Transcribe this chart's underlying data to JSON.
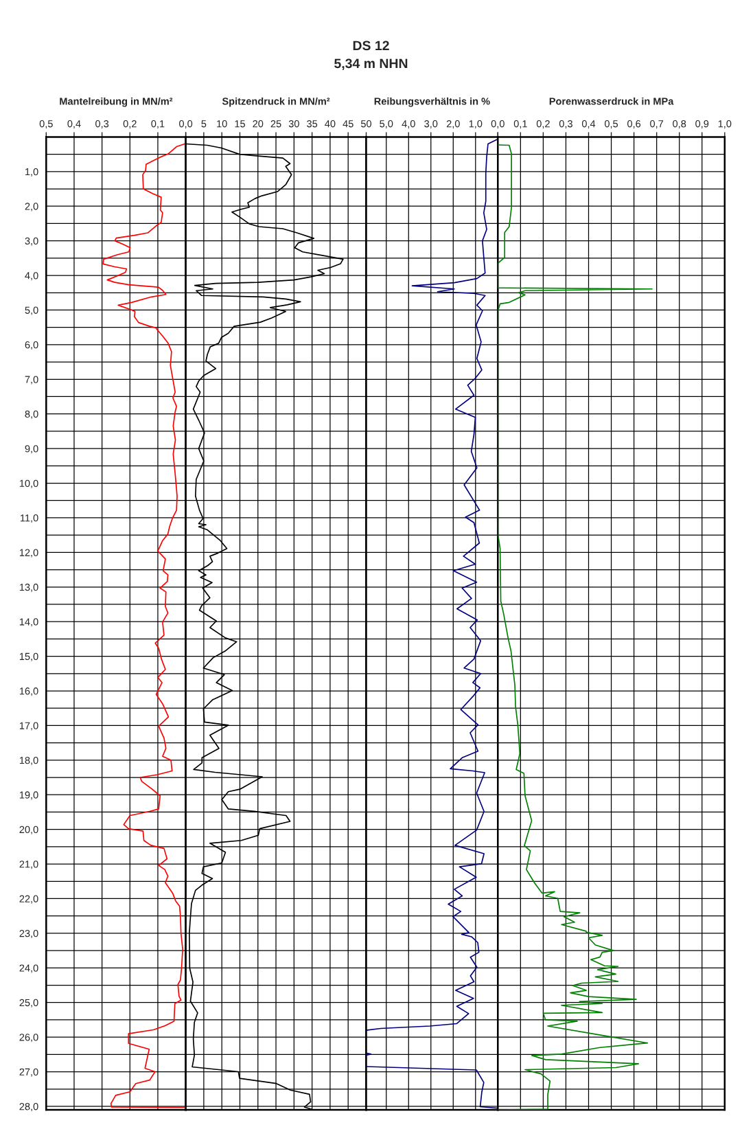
{
  "chart_data": [
    {
      "type": "line",
      "xlabel": "Mantelreibung in MN/m²",
      "grid": true,
      "xlim": [
        0.5,
        0
      ],
      "xticks": [
        {
          "value": 0.5,
          "label": "0,5"
        },
        {
          "value": 0.4,
          "label": "0,4"
        },
        {
          "value": 0.3,
          "label": "0,3"
        },
        {
          "value": 0.2,
          "label": "0,2"
        },
        {
          "value": 0.1,
          "label": "0,1"
        },
        {
          "value": 0,
          "label": "0,0"
        }
      ],
      "ylim": [
        28.1,
        0
      ],
      "yticks": [
        {
          "value": 0.5,
          "label": null
        },
        {
          "value": 1,
          "label": "1,0"
        },
        {
          "value": 1.5,
          "label": null
        },
        {
          "value": 2,
          "label": "2,0"
        },
        {
          "value": 2.5,
          "label": null
        },
        {
          "value": 3,
          "label": "3,0"
        },
        {
          "value": 3.5,
          "label": null
        },
        {
          "value": 4,
          "label": "4,0"
        },
        {
          "value": 4.5,
          "label": null
        },
        {
          "value": 5,
          "label": "5,0"
        },
        {
          "value": 5.5,
          "label": null
        },
        {
          "value": 6,
          "label": "6,0"
        },
        {
          "value": 6.5,
          "label": null
        },
        {
          "value": 7,
          "label": "7,0"
        },
        {
          "value": 7.5,
          "label": null
        },
        {
          "value": 8,
          "label": "8,0"
        },
        {
          "value": 8.5,
          "label": null
        },
        {
          "value": 9,
          "label": "9,0"
        },
        {
          "value": 9.5,
          "label": null
        },
        {
          "value": 10,
          "label": "10,0"
        },
        {
          "value": 10.5,
          "label": null
        },
        {
          "value": 11,
          "label": "11,0"
        },
        {
          "value": 11.5,
          "label": null
        },
        {
          "value": 12,
          "label": "12,0"
        },
        {
          "value": 12.5,
          "label": null
        },
        {
          "value": 13,
          "label": "13,0"
        },
        {
          "value": 13.5,
          "label": null
        },
        {
          "value": 14,
          "label": "14,0"
        },
        {
          "value": 14.5,
          "label": null
        },
        {
          "value": 15,
          "label": "15,0"
        },
        {
          "value": 15.5,
          "label": null
        },
        {
          "value": 16,
          "label": "16,0"
        },
        {
          "value": 16.5,
          "label": null
        },
        {
          "value": 17,
          "label": "17,0"
        },
        {
          "value": 17.5,
          "label": null
        },
        {
          "value": 18,
          "label": "18,0"
        },
        {
          "value": 18.5,
          "label": null
        },
        {
          "value": 19,
          "label": "19,0"
        },
        {
          "value": 19.5,
          "label": null
        },
        {
          "value": 20,
          "label": "20,0"
        },
        {
          "value": 20.5,
          "label": null
        },
        {
          "value": 21,
          "label": "21,0"
        },
        {
          "value": 21.5,
          "label": null
        },
        {
          "value": 22,
          "label": "22,0"
        },
        {
          "value": 22.5,
          "label": null
        },
        {
          "value": 23,
          "label": "23,0"
        },
        {
          "value": 23.5,
          "label": null
        },
        {
          "value": 24,
          "label": "24,0"
        },
        {
          "value": 24.5,
          "label": null
        },
        {
          "value": 25,
          "label": "25,0"
        },
        {
          "value": 25.5,
          "label": null
        },
        {
          "value": 26,
          "label": "26,0"
        },
        {
          "value": 26.5,
          "label": null
        },
        {
          "value": 27,
          "label": "27,0"
        },
        {
          "value": 27.5,
          "label": null
        },
        {
          "value": 28,
          "label": "28,0"
        }
      ],
      "series": [
        {
          "color": "#ff0000",
          "x": [
            0,
            0.033,
            0.063,
            0.093,
            0.118,
            0.142,
            0.144,
            0.154,
            0.152,
            0.118,
            0.088,
            0.091,
            0.083,
            0.088,
            0.103,
            0.136,
            0.184,
            0.249,
            0.254,
            0.224,
            0.199,
            0.204,
            0.244,
            0.294,
            0.296,
            0.254,
            0.212,
            0.216,
            0.244,
            0.281,
            0.254,
            0.204,
            0.098,
            0.083,
            0.071,
            0.123,
            0.194,
            0.242,
            0.199,
            0.182,
            0.184,
            0.169,
            0.129,
            0.108,
            0.083,
            0.063,
            0.051,
            0.055,
            0.045,
            0.038,
            0.046,
            0.033,
            0.038,
            0.045,
            0.037,
            0.045,
            0.038,
            0.031,
            0.033,
            0.048,
            0.058,
            0.064,
            0.083,
            0.1,
            0.073,
            0.081,
            0.064,
            0.066,
            0.092,
            0.071,
            0.073,
            0.064,
            0.083,
            0.078,
            0.109,
            0.097,
            0.087,
            0.073,
            0.1,
            0.085,
            0.106,
            0.083,
            0.062,
            0.097,
            0.078,
            0.071,
            0.083,
            0.053,
            0.049,
            0.102,
            0.163,
            0.158,
            0.12,
            0.092,
            0.097,
            0.13,
            0.2,
            0.222,
            0.205,
            0.153,
            0.15,
            0.125,
            0.078,
            0.067,
            0.097,
            0.075,
            0.064,
            0.073,
            0.047,
            0.036,
            0.022,
            0.019,
            0.017,
            0.011,
            0.015,
            0.019,
            0.028,
            0.024,
            0.017,
            0.039,
            0.042,
            0.074,
            0.116,
            0.205,
            0.205,
            0.131,
            0.146,
            0.11,
            0.129,
            0.179,
            0.2,
            0.251,
            0.268,
            0.266,
            0
          ],
          "values": [
            0.19,
            0.28,
            0.49,
            0.59,
            0.69,
            0.79,
            0.97,
            1.09,
            1.5,
            1.64,
            1.74,
            2.11,
            2.19,
            2.47,
            2.55,
            2.77,
            2.84,
            2.92,
            3.0,
            3.1,
            3.2,
            3.32,
            3.4,
            3.53,
            3.67,
            3.75,
            3.81,
            3.91,
            4.01,
            4.13,
            4.2,
            4.27,
            4.34,
            4.43,
            4.55,
            4.62,
            4.78,
            4.86,
            4.98,
            5.04,
            5.19,
            5.36,
            5.47,
            5.51,
            5.75,
            5.96,
            6.2,
            6.6,
            7.05,
            7.37,
            7.54,
            7.78,
            7.94,
            8.35,
            8.75,
            9.16,
            9.72,
            10.37,
            10.78,
            11.02,
            11.26,
            11.47,
            11.66,
            11.96,
            12.19,
            12.53,
            12.65,
            12.84,
            13.03,
            13.14,
            13.56,
            13.75,
            14.01,
            14.39,
            14.62,
            14.77,
            15.08,
            15.38,
            15.61,
            15.76,
            16.1,
            16.37,
            16.75,
            17.02,
            17.36,
            17.66,
            17.89,
            18.0,
            18.31,
            18.42,
            18.5,
            18.61,
            18.84,
            19.03,
            19.41,
            19.48,
            19.6,
            19.86,
            19.98,
            20.05,
            20.32,
            20.46,
            20.55,
            20.85,
            21.04,
            21.16,
            21.35,
            21.54,
            21.84,
            22.07,
            22.22,
            22.52,
            23.0,
            23.46,
            24.01,
            24.35,
            24.48,
            24.82,
            24.93,
            25.03,
            25.54,
            25.67,
            25.79,
            25.9,
            26.18,
            26.35,
            26.9,
            27.0,
            27.24,
            27.34,
            27.58,
            27.68,
            27.92,
            28.02,
            28.03
          ]
        }
      ]
    },
    {
      "type": "line",
      "xlabel": "Spitzendruck in MN/m²",
      "grid": true,
      "tick_labels": "x",
      "xlim": [
        0,
        50
      ],
      "xticks": [
        {
          "value": 0,
          "label": null
        },
        5,
        10,
        15,
        20,
        25,
        30,
        35,
        40,
        45,
        50
      ],
      "ylim": [
        28.1,
        0
      ],
      "yticks": [
        0.5,
        1,
        1.5,
        2,
        2.5,
        3,
        3.5,
        4,
        4.5,
        5,
        5.5,
        6,
        6.5,
        7,
        7.5,
        8,
        8.5,
        9,
        9.5,
        10,
        10.5,
        11,
        11.5,
        12,
        12.5,
        13,
        13.5,
        14,
        14.5,
        15,
        15.5,
        16,
        16.5,
        17,
        17.5,
        18,
        18.5,
        19,
        19.5,
        20,
        20.5,
        21,
        21.5,
        22,
        22.5,
        23,
        23.5,
        24,
        24.5,
        25,
        25.5,
        26,
        26.5,
        27,
        27.5,
        28
      ],
      "series": [
        {
          "color": "#000000",
          "x": [
            0,
            6.0,
            9.9,
            14.9,
            20.0,
            26.9,
            28.9,
            27.7,
            29.3,
            27.7,
            25.4,
            21.1,
            19.2,
            17.2,
            17.6,
            15.3,
            12.8,
            14.9,
            17.6,
            20.3,
            26.9,
            30.8,
            35.5,
            31.2,
            30.2,
            32.4,
            37.8,
            43.6,
            42.9,
            40.1,
            36.6,
            38.4,
            34.7,
            30.0,
            20.0,
            8.3,
            2.5,
            7.5,
            2.9,
            4.4,
            21.5,
            27.7,
            31.8,
            28.1,
            23.4,
            27.7,
            23.8,
            20.7,
            13.4,
            11.8,
            9.9,
            9.1,
            6.8,
            6.0,
            5.6,
            8.3,
            5.0,
            3.6,
            2.9,
            4.0,
            2.1,
            3.6,
            5.2,
            3.6,
            5.0,
            2.9,
            2.7,
            3.8,
            4.8,
            3.6,
            5.6,
            3.6,
            6.0,
            9.6,
            11.4,
            8.9,
            6.7,
            7.4,
            6.1,
            3.6,
            5.6,
            4.1,
            7.3,
            4.7,
            6.7,
            4.4,
            3.8,
            8.5,
            6.7,
            11.0,
            14.1,
            10.9,
            7.6,
            4.9,
            10.7,
            8.5,
            12.9,
            7.4,
            4.9,
            5.2,
            11.8,
            6.7,
            9.2,
            4.5,
            4.5,
            2.2,
            8.1,
            21.2,
            15.0,
            11.8,
            10.0,
            11.8,
            19.0,
            27.8,
            28.9,
            20.5,
            20.1,
            15.4,
            6.7,
            11.0,
            10.0,
            4.9,
            4.5,
            7.4,
            4.5,
            2.7,
            1.6,
            1.2,
            1.0,
            1.1,
            2.0,
            1.3,
            3.3,
            2.4,
            2.1,
            2.4,
            1.8,
            14.6,
            14.9,
            25.1,
            29.0,
            34.3,
            34.6,
            32.9,
            34.8
          ],
          "values": [
            0.2,
            0.24,
            0.32,
            0.5,
            0.55,
            0.61,
            0.77,
            0.85,
            1.09,
            1.38,
            1.58,
            1.7,
            1.78,
            1.9,
            2.03,
            2.09,
            2.17,
            2.31,
            2.51,
            2.59,
            2.65,
            2.77,
            2.93,
            3.06,
            3.2,
            3.32,
            3.42,
            3.53,
            3.66,
            3.77,
            3.85,
            3.95,
            4.04,
            4.13,
            4.2,
            4.23,
            4.29,
            4.39,
            4.44,
            4.58,
            4.62,
            4.68,
            4.76,
            4.85,
            4.93,
            5.04,
            5.23,
            5.35,
            5.47,
            5.67,
            5.79,
            5.96,
            6.06,
            6.28,
            6.47,
            6.69,
            6.89,
            7.05,
            7.21,
            7.37,
            7.86,
            8.18,
            8.55,
            9.0,
            9.36,
            9.89,
            10.37,
            10.78,
            11.02,
            11.17,
            11.2,
            11.26,
            11.35,
            11.66,
            11.89,
            12.02,
            12.11,
            12.27,
            12.38,
            12.53,
            12.65,
            12.72,
            12.87,
            13.03,
            13.31,
            13.54,
            13.67,
            13.98,
            14.17,
            14.47,
            14.58,
            14.85,
            15.04,
            15.34,
            15.53,
            15.76,
            15.99,
            16.26,
            16.52,
            16.9,
            16.99,
            17.28,
            17.66,
            17.93,
            18.08,
            18.27,
            18.35,
            18.48,
            18.84,
            18.91,
            19.14,
            19.41,
            19.48,
            19.6,
            19.77,
            19.98,
            20.17,
            20.32,
            20.4,
            20.66,
            20.97,
            21.08,
            21.27,
            21.42,
            21.61,
            21.76,
            22.14,
            22.67,
            23.0,
            24.01,
            24.41,
            24.96,
            25.3,
            25.57,
            26.05,
            26.52,
            26.86,
            27.0,
            27.19,
            27.34,
            27.53,
            27.65,
            27.87,
            28.02,
            28.08
          ]
        }
      ]
    },
    {
      "type": "line",
      "title": "DS 12",
      "subtitle": "5,34 m NHN",
      "xlabel": "Reibungsverhältnis in %",
      "grid": true,
      "tick_labels": "x",
      "xlim": [
        5.9,
        0
      ],
      "xticks": [
        {
          "value": 5,
          "label": "5,0"
        },
        {
          "value": 4,
          "label": "4,0"
        },
        {
          "value": 3,
          "label": "3,0"
        },
        {
          "value": 2,
          "label": "2,0"
        },
        {
          "value": 1,
          "label": "1,0"
        },
        {
          "value": 0,
          "label": "0,0"
        }
      ],
      "ylim": [
        28.1,
        0
      ],
      "yticks": [
        0.5,
        1,
        1.5,
        2,
        2.5,
        3,
        3.5,
        4,
        4.5,
        5,
        5.5,
        6,
        6.5,
        7,
        7.5,
        8,
        8.5,
        9,
        9.5,
        10,
        10.5,
        11,
        11.5,
        12,
        12.5,
        13,
        13.5,
        14,
        14.5,
        15,
        15.5,
        16,
        16.5,
        17,
        17.5,
        18,
        18.5,
        19,
        19.5,
        20,
        20.5,
        21,
        21.5,
        22,
        22.5,
        23,
        23.5,
        24,
        24.5,
        25,
        25.5,
        26,
        26.5,
        27,
        27.5,
        28
      ],
      "series": [
        {
          "color": "#000080",
          "x": [
            0,
            0.44,
            0.5,
            0.54,
            0.54,
            0.63,
            0.5,
            0.69,
            0.63,
            0.57,
            0.94,
            1.95,
            3.84,
            1.95,
            2.7,
            1.07,
            0.57,
            0.94,
            0.69,
            0.97,
            0.75,
            0.94,
            0.72,
            1.01,
            1.35,
            1.07,
            1.89,
            1.01,
            1.07,
            1.19,
            0.94,
            1.51,
            0.82,
            1.45,
            1.07,
            0.83,
            1.54,
            1.01,
            1.99,
            0.95,
            1.6,
            1.18,
            1.83,
            0.92,
            1.24,
            0.77,
            1.07,
            1.51,
            0.77,
            1.12,
            0.8,
            1.09,
            1.66,
            0.89,
            1.24,
            0.89,
            1.6,
            2.13,
            1.12,
            0.59,
            0.95,
            0.62,
            0.95,
            1.92,
            0.62,
            0.73,
            1.72,
            0.97,
            1.95,
            1.6,
            2.22,
            1.66,
            2.01,
            1.3,
            1.62,
            1.18,
            0.9,
            0.85,
            1.23,
            0.94,
            1.23,
            1.07,
            1.89,
            1.09,
            1.84,
            1.31,
            1.84,
            3.05,
            5.25,
            5.9,
            null,
            5.9,
            5.69,
            5.9,
            null,
            5.9,
            0.96,
            0.63,
            0.72,
            0.79,
            0.02
          ],
          "values": [
            0.06,
            0.2,
            0.57,
            1.05,
            1.86,
            2.19,
            2.67,
            3.0,
            3.48,
            3.93,
            4.09,
            4.21,
            4.3,
            4.39,
            4.47,
            4.52,
            4.58,
            4.86,
            5.02,
            5.43,
            5.92,
            6.4,
            6.73,
            6.97,
            7.17,
            7.46,
            7.86,
            8.1,
            8.59,
            9.08,
            9.56,
            10.05,
            10.78,
            10.98,
            11.14,
            11.73,
            12.11,
            12.34,
            12.53,
            12.86,
            13.03,
            13.33,
            13.63,
            13.95,
            14.17,
            14.55,
            15.08,
            15.34,
            15.5,
            15.76,
            15.91,
            16.14,
            16.54,
            16.98,
            17.21,
            17.74,
            17.93,
            18.25,
            18.31,
            18.36,
            18.95,
            19.48,
            20.02,
            20.46,
            20.7,
            20.99,
            21.08,
            21.38,
            21.73,
            21.92,
            22.16,
            22.37,
            22.52,
            22.98,
            23.03,
            23.1,
            23.27,
            23.55,
            23.69,
            23.98,
            24.23,
            24.4,
            24.65,
            24.88,
            25.11,
            25.32,
            25.61,
            25.68,
            25.75,
            25.8,
            null,
            26.46,
            26.49,
            26.52,
            null,
            26.85,
            26.95,
            27.31,
            27.59,
            28.01,
            28.05
          ]
        }
      ]
    },
    {
      "type": "line",
      "xlabel": "Porenwasserdruck in MPa",
      "grid": true,
      "tick_labels": "x",
      "xlim": [
        0,
        1
      ],
      "xticks": [
        {
          "value": 0,
          "label": null
        },
        {
          "value": 0.1,
          "label": "0,1"
        },
        {
          "value": 0.2,
          "label": "0,2"
        },
        {
          "value": 0.3,
          "label": "0,3"
        },
        {
          "value": 0.4,
          "label": "0,4"
        },
        {
          "value": 0.5,
          "label": "0,5"
        },
        {
          "value": 0.6,
          "label": "0,6"
        },
        {
          "value": 0.7,
          "label": "0,7"
        },
        {
          "value": 0.8,
          "label": "0,8"
        },
        {
          "value": 0.9,
          "label": "0,9"
        },
        {
          "value": 1,
          "label": "1,0"
        }
      ],
      "ylim": [
        28.1,
        0
      ],
      "yticks": [
        0.5,
        1,
        1.5,
        2,
        2.5,
        3,
        3.5,
        4,
        4.5,
        5,
        5.5,
        6,
        6.5,
        7,
        7.5,
        8,
        8.5,
        9,
        9.5,
        10,
        10.5,
        11,
        11.5,
        12,
        12.5,
        13,
        13.5,
        14,
        14.5,
        15,
        15.5,
        16,
        16.5,
        17,
        17.5,
        18,
        18.5,
        19,
        19.5,
        20,
        20.5,
        21,
        21.5,
        22,
        22.5,
        23,
        23.5,
        24,
        24.5,
        25,
        25.5,
        26,
        26.5,
        27,
        27.5,
        28
      ],
      "series": [
        {
          "color": "#008000",
          "x": [
            0,
            0.05,
            0.06,
            0.06,
            0.06,
            0.05,
            0.03,
            0.03,
            0,
            0,
            0,
            0.68,
            0.12,
            0.09,
            0.12,
            0.05,
            0.01,
            0,
            0,
            0.01,
            0.013,
            0.026,
            0.045,
            0.058,
            0.075,
            0.078,
            0.088,
            0.097,
            0.081,
            0.115,
            0.12,
            0.149,
            0.117,
            0.143,
            0.126,
            0.161,
            0.195,
            0.25,
            0.21,
            0.264,
            0.275,
            0.361,
            0.292,
            0.338,
            0.281,
            0.389,
            0.39,
            0.46,
            0.4,
            0.43,
            0.51,
            0.46,
            0.45,
            0.41,
            0.47,
            0.53,
            0.44,
            0.52,
            0.43,
            0.53,
            0.37,
            0.33,
            0.39,
            0.32,
            0.4,
            0.61,
            0.36,
            0.46,
            0.28,
            0.46,
            0.2,
            0.21,
            0.35,
            0.22,
            0.47,
            0.66,
            0.45,
            0.28,
            0.15,
            0.21,
            0.62,
            0.52,
            0.12,
            0.19,
            0.23,
            0.22,
            0.22,
            0
          ],
          "values": [
            0.23,
            0.24,
            0.49,
            1.05,
            2.03,
            2.59,
            2.76,
            3.48,
            3.65,
            3.81,
            4.36,
            4.39,
            4.44,
            4.5,
            4.56,
            4.78,
            4.82,
            5.02,
            11.47,
            11.89,
            13.41,
            13.79,
            14.47,
            14.85,
            15.84,
            16.45,
            16.98,
            17.81,
            18.27,
            18.38,
            19.03,
            19.75,
            20.47,
            20.62,
            21.16,
            21.54,
            21.84,
            21.8,
            21.92,
            21.99,
            22.37,
            22.41,
            22.52,
            22.68,
            22.75,
            22.94,
            22.97,
            23.06,
            23.13,
            23.34,
            23.5,
            23.55,
            23.69,
            23.76,
            23.94,
            23.96,
            24.05,
            24.18,
            24.26,
            24.39,
            24.44,
            24.51,
            24.65,
            24.72,
            24.83,
            24.91,
            24.97,
            25.03,
            25.08,
            25.29,
            25.31,
            25.5,
            25.54,
            25.68,
            25.96,
            26.17,
            26.3,
            26.49,
            26.53,
            26.65,
            26.77,
            26.88,
            26.94,
            27.06,
            27.27,
            27.66,
            28.08,
            28.1
          ]
        }
      ]
    }
  ]
}
